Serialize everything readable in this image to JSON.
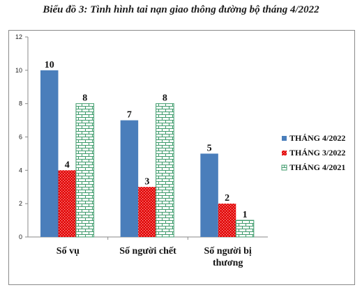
{
  "title": "Biểu đồ 3: Tình hình tai nạn giao thông đường bộ tháng 4/2022",
  "chart_data": {
    "type": "bar",
    "categories": [
      "Số vụ",
      "Số người chết",
      "Số người bị thương"
    ],
    "series": [
      {
        "name": "THÁNG 4/2022",
        "values": [
          10,
          7,
          5
        ],
        "color": "#4a7ebb",
        "pattern": "solid"
      },
      {
        "name": "THÁNG 3/2022",
        "values": [
          4,
          3,
          2
        ],
        "color": "#e00000",
        "pattern": "dots"
      },
      {
        "name": "THÁNG 4/2021",
        "values": [
          8,
          8,
          1
        ],
        "color": "#3c9a6a",
        "pattern": "bricks"
      }
    ],
    "ylim": [
      0,
      12
    ],
    "yticks": [
      0,
      2,
      4,
      6,
      8,
      10,
      12
    ],
    "grid": false,
    "legend": "right"
  }
}
